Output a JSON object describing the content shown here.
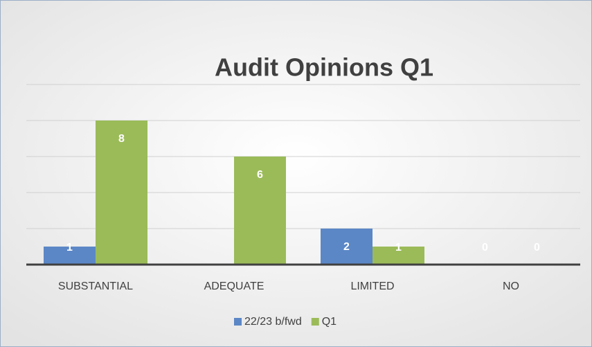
{
  "chart_data": {
    "type": "bar",
    "title": "Audit Opinions Q1",
    "categories": [
      "SUBSTANTIAL",
      "ADEQUATE",
      "LIMITED",
      "NO"
    ],
    "series": [
      {
        "name": "22/23 b/fwd",
        "color": "#5b87c6",
        "values": [
          1,
          null,
          2,
          0
        ]
      },
      {
        "name": "Q1",
        "color": "#9bbb59",
        "values": [
          8,
          6,
          1,
          0
        ]
      }
    ],
    "ylim": [
      0,
      10
    ],
    "yticks": [
      0,
      2,
      4,
      6,
      8,
      10
    ],
    "grid": true,
    "legend": "bottom"
  }
}
